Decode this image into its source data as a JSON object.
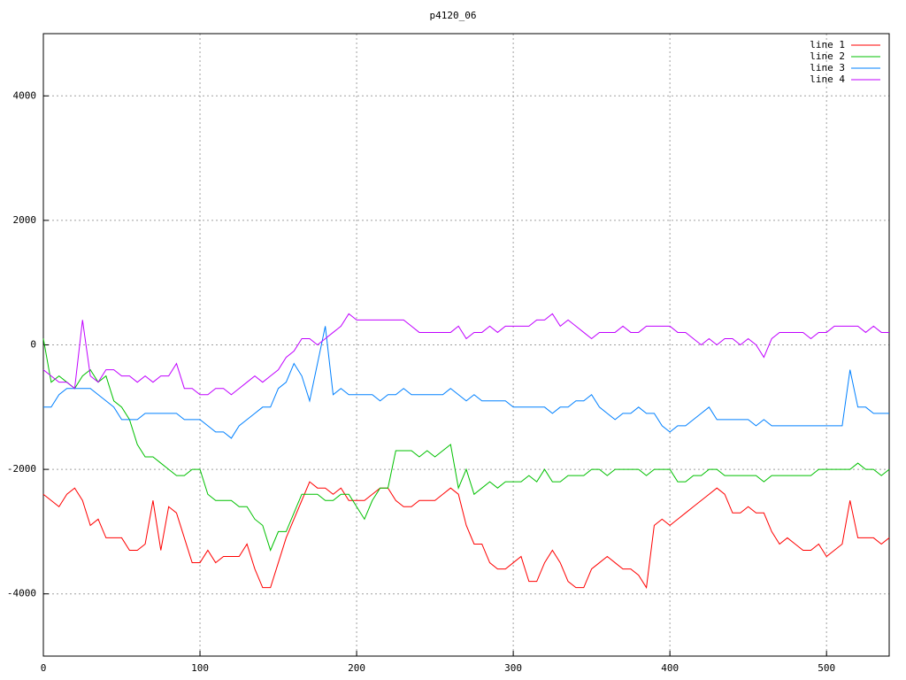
{
  "chart_data": {
    "type": "line",
    "title": "p4120_06",
    "x": [
      0,
      5,
      10,
      15,
      20,
      25,
      30,
      35,
      40,
      45,
      50,
      55,
      60,
      65,
      70,
      75,
      80,
      85,
      90,
      95,
      100,
      105,
      110,
      115,
      120,
      125,
      130,
      135,
      140,
      145,
      150,
      155,
      160,
      165,
      170,
      175,
      180,
      185,
      190,
      195,
      200,
      205,
      210,
      215,
      220,
      225,
      230,
      235,
      240,
      245,
      250,
      255,
      260,
      265,
      270,
      275,
      280,
      285,
      290,
      295,
      300,
      305,
      310,
      315,
      320,
      325,
      330,
      335,
      340,
      345,
      350,
      355,
      360,
      365,
      370,
      375,
      380,
      385,
      390,
      395,
      400,
      405,
      410,
      415,
      420,
      425,
      430,
      435,
      440,
      445,
      450,
      455,
      460,
      465,
      470,
      475,
      480,
      485,
      490,
      495,
      500,
      505,
      510,
      515,
      520,
      525,
      530,
      535,
      540
    ],
    "series": [
      {
        "name": "line 1",
        "color": "#ff0000",
        "values": [
          -2400,
          -2500,
          -2600,
          -2400,
          -2300,
          -2500,
          -2900,
          -2800,
          -3100,
          -3100,
          -3100,
          -3300,
          -3300,
          -3200,
          -2500,
          -3300,
          -2600,
          -2700,
          -3100,
          -3500,
          -3500,
          -3300,
          -3500,
          -3400,
          -3400,
          -3400,
          -3200,
          -3600,
          -3900,
          -3900,
          -3500,
          -3100,
          -2800,
          -2500,
          -2200,
          -2300,
          -2300,
          -2400,
          -2300,
          -2500,
          -2500,
          -2500,
          -2400,
          -2300,
          -2300,
          -2500,
          -2600,
          -2600,
          -2500,
          -2500,
          -2500,
          -2400,
          -2300,
          -2400,
          -2900,
          -3200,
          -3200,
          -3500,
          -3600,
          -3600,
          -3500,
          -3400,
          -3800,
          -3800,
          -3500,
          -3300,
          -3500,
          -3800,
          -3900,
          -3900,
          -3600,
          -3500,
          -3400,
          -3500,
          -3600,
          -3600,
          -3700,
          -3900,
          -2900,
          -2800,
          -2900,
          -2800,
          -2700,
          -2600,
          -2500,
          -2400,
          -2300,
          -2400,
          -2700,
          -2700,
          -2600,
          -2700,
          -2700,
          -3000,
          -3200,
          -3100,
          -3200,
          -3300,
          -3300,
          -3200,
          -3400,
          -3300,
          -3200,
          -2500,
          -3100,
          -3100,
          -3100,
          -3200,
          -3100
        ]
      },
      {
        "name": "line 2",
        "color": "#00c000",
        "values": [
          100,
          -600,
          -500,
          -600,
          -700,
          -500,
          -400,
          -600,
          -500,
          -900,
          -1000,
          -1200,
          -1600,
          -1800,
          -1800,
          -1900,
          -2000,
          -2100,
          -2100,
          -2000,
          -2000,
          -2400,
          -2500,
          -2500,
          -2500,
          -2600,
          -2600,
          -2800,
          -2900,
          -3300,
          -3000,
          -3000,
          -2700,
          -2400,
          -2400,
          -2400,
          -2500,
          -2500,
          -2400,
          -2400,
          -2600,
          -2800,
          -2500,
          -2300,
          -2300,
          -1700,
          -1700,
          -1700,
          -1800,
          -1700,
          -1800,
          -1700,
          -1600,
          -2300,
          -2000,
          -2400,
          -2300,
          -2200,
          -2300,
          -2200,
          -2200,
          -2200,
          -2100,
          -2200,
          -2000,
          -2200,
          -2200,
          -2100,
          -2100,
          -2100,
          -2000,
          -2000,
          -2100,
          -2000,
          -2000,
          -2000,
          -2000,
          -2100,
          -2000,
          -2000,
          -2000,
          -2200,
          -2200,
          -2100,
          -2100,
          -2000,
          -2000,
          -2100,
          -2100,
          -2100,
          -2100,
          -2100,
          -2200,
          -2100,
          -2100,
          -2100,
          -2100,
          -2100,
          -2100,
          -2000,
          -2000,
          -2000,
          -2000,
          -2000,
          -1900,
          -2000,
          -2000,
          -2100,
          -2000
        ]
      },
      {
        "name": "line 3",
        "color": "#0080ff",
        "values": [
          -1000,
          -1000,
          -800,
          -700,
          -700,
          -700,
          -700,
          -800,
          -900,
          -1000,
          -1200,
          -1200,
          -1200,
          -1100,
          -1100,
          -1100,
          -1100,
          -1100,
          -1200,
          -1200,
          -1200,
          -1300,
          -1400,
          -1400,
          -1500,
          -1300,
          -1200,
          -1100,
          -1000,
          -1000,
          -700,
          -600,
          -300,
          -500,
          -900,
          -300,
          300,
          -800,
          -700,
          -800,
          -800,
          -800,
          -800,
          -900,
          -800,
          -800,
          -700,
          -800,
          -800,
          -800,
          -800,
          -800,
          -700,
          -800,
          -900,
          -800,
          -900,
          -900,
          -900,
          -900,
          -1000,
          -1000,
          -1000,
          -1000,
          -1000,
          -1100,
          -1000,
          -1000,
          -900,
          -900,
          -800,
          -1000,
          -1100,
          -1200,
          -1100,
          -1100,
          -1000,
          -1100,
          -1100,
          -1300,
          -1400,
          -1300,
          -1300,
          -1200,
          -1100,
          -1000,
          -1200,
          -1200,
          -1200,
          -1200,
          -1200,
          -1300,
          -1200,
          -1300,
          -1300,
          -1300,
          -1300,
          -1300,
          -1300,
          -1300,
          -1300,
          -1300,
          -1300,
          -400,
          -1000,
          -1000,
          -1100,
          -1100,
          -1100
        ]
      },
      {
        "name": "line 4",
        "color": "#c000ff",
        "values": [
          -400,
          -500,
          -600,
          -600,
          -700,
          400,
          -500,
          -600,
          -400,
          -400,
          -500,
          -500,
          -600,
          -500,
          -600,
          -500,
          -500,
          -300,
          -700,
          -700,
          -800,
          -800,
          -700,
          -700,
          -800,
          -700,
          -600,
          -500,
          -600,
          -500,
          -400,
          -200,
          -100,
          100,
          100,
          0,
          100,
          200,
          300,
          500,
          400,
          400,
          400,
          400,
          400,
          400,
          400,
          300,
          200,
          200,
          200,
          200,
          200,
          300,
          100,
          200,
          200,
          300,
          200,
          300,
          300,
          300,
          300,
          400,
          400,
          500,
          300,
          400,
          300,
          200,
          100,
          200,
          200,
          200,
          300,
          200,
          200,
          300,
          300,
          300,
          300,
          200,
          200,
          100,
          0,
          100,
          0,
          100,
          100,
          0,
          100,
          0,
          -200,
          100,
          200,
          200,
          200,
          200,
          100,
          200,
          200,
          300,
          300,
          300,
          300,
          200,
          300,
          200,
          200
        ]
      }
    ],
    "xlim": [
      0,
      540
    ],
    "ylim": [
      -5000,
      5000
    ],
    "xticks": [
      0,
      100,
      200,
      300,
      400,
      500
    ],
    "yticks": [
      -4000,
      -2000,
      0,
      2000,
      4000
    ],
    "grid": true,
    "legend": "top-right"
  }
}
